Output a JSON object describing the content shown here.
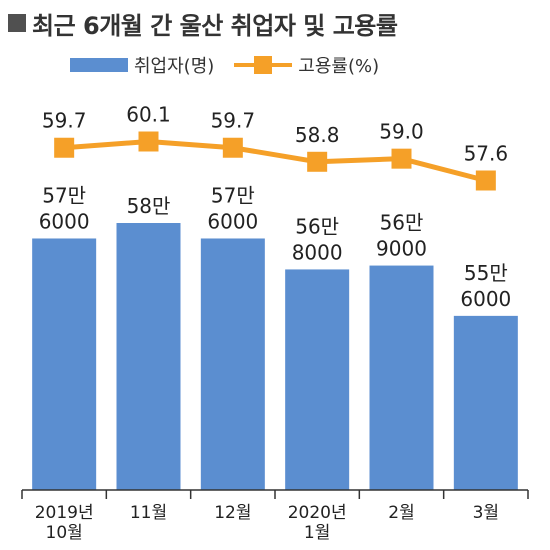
{
  "title": "최근 6개월 간 울산 취업자 및 고용률",
  "chart_data": {
    "type": "bar",
    "categories": [
      [
        "2019년",
        "10월"
      ],
      [
        "11월"
      ],
      [
        "12월"
      ],
      [
        "2020년",
        "1월"
      ],
      [
        "2월"
      ],
      [
        "3월"
      ]
    ],
    "series": [
      {
        "name": "취업자(명)",
        "kind": "bar",
        "color": "#5b8ed0",
        "values": [
          576000,
          580000,
          576000,
          568000,
          569000,
          556000
        ],
        "labels": [
          [
            "57만",
            "6000"
          ],
          [
            "58만"
          ],
          [
            "57만",
            "6000"
          ],
          [
            "56만",
            "8000"
          ],
          [
            "56만",
            "9000"
          ],
          [
            "55만",
            "6000"
          ]
        ]
      },
      {
        "name": "고용률(%)",
        "kind": "line",
        "color": "#f5a028",
        "values": [
          59.7,
          60.1,
          59.7,
          58.8,
          59.0,
          57.6
        ],
        "labels": [
          "59.7",
          "60.1",
          "59.7",
          "58.8",
          "59.0",
          "57.6"
        ]
      }
    ],
    "legend_position": "top-left",
    "grid": false
  }
}
